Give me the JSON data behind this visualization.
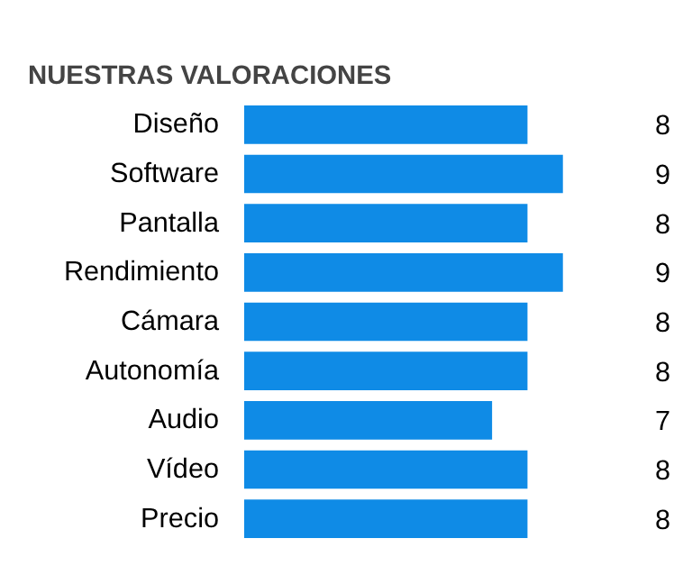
{
  "chart_data": {
    "type": "bar",
    "orientation": "horizontal",
    "title": "NUESTRAS VALORACIONES",
    "categories": [
      "Diseño",
      "Software",
      "Pantalla",
      "Rendimiento",
      "Cámara",
      "Autonomía",
      "Audio",
      "Vídeo",
      "Precio"
    ],
    "values": [
      8,
      9,
      8,
      9,
      8,
      8,
      7,
      8,
      8
    ],
    "color": "#0f8be6",
    "data_labels": true,
    "tick_labels": "y",
    "grid": false
  }
}
